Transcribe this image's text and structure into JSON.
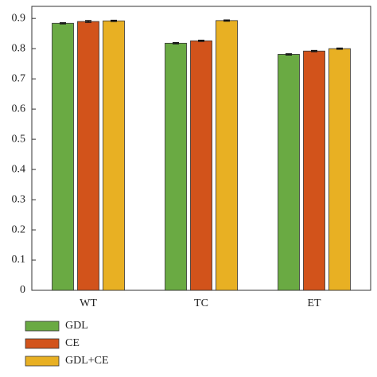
{
  "chart_data": {
    "type": "bar",
    "categories": [
      "WT",
      "TC",
      "ET"
    ],
    "series": [
      {
        "name": "GDL",
        "color": "#6aaa43",
        "values": [
          0.884,
          0.818,
          0.781
        ],
        "errors": [
          0.002,
          0.002,
          0.002
        ]
      },
      {
        "name": "CE",
        "color": "#d2531b",
        "values": [
          0.89,
          0.826,
          0.792
        ],
        "errors": [
          0.003,
          0.002,
          0.002
        ]
      },
      {
        "name": "GDL+CE",
        "color": "#e8b023",
        "values": [
          0.892,
          0.893,
          0.8
        ],
        "errors": [
          0.002,
          0.002,
          0.002
        ]
      }
    ],
    "ylim": [
      0,
      0.94
    ],
    "yticks": [
      0,
      0.1,
      0.2,
      0.3,
      0.4,
      0.5,
      0.6,
      0.7,
      0.8,
      0.9
    ],
    "grid": false,
    "legend": "bottom-left"
  }
}
